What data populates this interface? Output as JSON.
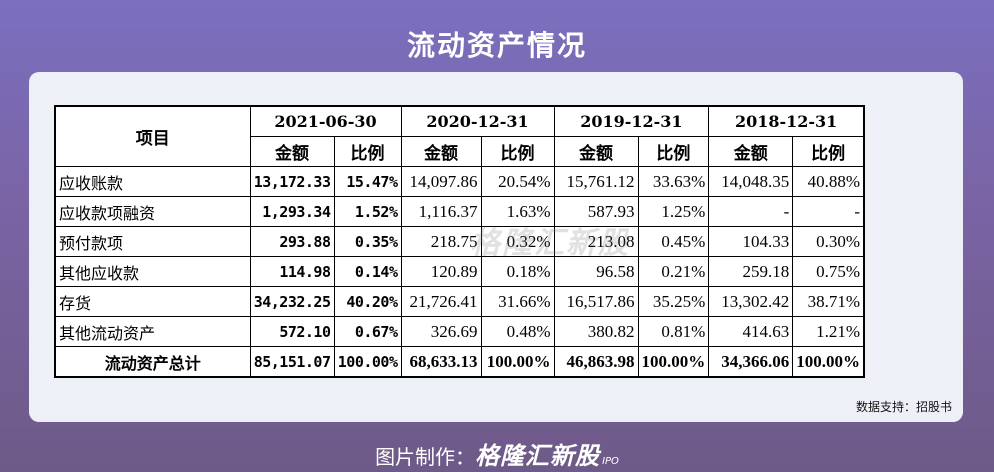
{
  "title": "流动资产情况",
  "table": {
    "item_header": "项目",
    "dates": [
      "2021-06-30",
      "2020-12-31",
      "2019-12-31",
      "2018-12-31"
    ],
    "amount_label": "金额",
    "ratio_label": "比例",
    "rows": [
      {
        "item": "应收账款",
        "v": [
          "13,172.33",
          "15.47%",
          "14,097.86",
          "20.54%",
          "15,761.12",
          "33.63%",
          "14,048.35",
          "40.88%"
        ]
      },
      {
        "item": "应收款项融资",
        "v": [
          "1,293.34",
          "1.52%",
          "1,116.37",
          "1.63%",
          "587.93",
          "1.25%",
          "-",
          "-"
        ]
      },
      {
        "item": "预付款项",
        "v": [
          "293.88",
          "0.35%",
          "218.75",
          "0.32%",
          "213.08",
          "0.45%",
          "104.33",
          "0.30%"
        ]
      },
      {
        "item": "其他应收款",
        "v": [
          "114.98",
          "0.14%",
          "120.89",
          "0.18%",
          "96.58",
          "0.21%",
          "259.18",
          "0.75%"
        ]
      },
      {
        "item": "存货",
        "v": [
          "34,232.25",
          "40.20%",
          "21,726.41",
          "31.66%",
          "16,517.86",
          "35.25%",
          "13,302.42",
          "38.71%"
        ]
      },
      {
        "item": "其他流动资产",
        "v": [
          "572.10",
          "0.67%",
          "326.69",
          "0.48%",
          "380.82",
          "0.81%",
          "414.63",
          "1.21%"
        ]
      }
    ],
    "total": {
      "item": "流动资产总计",
      "v": [
        "85,151.07",
        "100.00%",
        "68,633.13",
        "100.00%",
        "46,863.98",
        "100.00%",
        "34,366.06",
        "100.00%"
      ]
    }
  },
  "source": "数据支持：招股书",
  "watermark": "格隆汇新股",
  "footer": {
    "prefix": "图片制作：",
    "brand": "格隆汇新股",
    "ipo": "IPO"
  }
}
